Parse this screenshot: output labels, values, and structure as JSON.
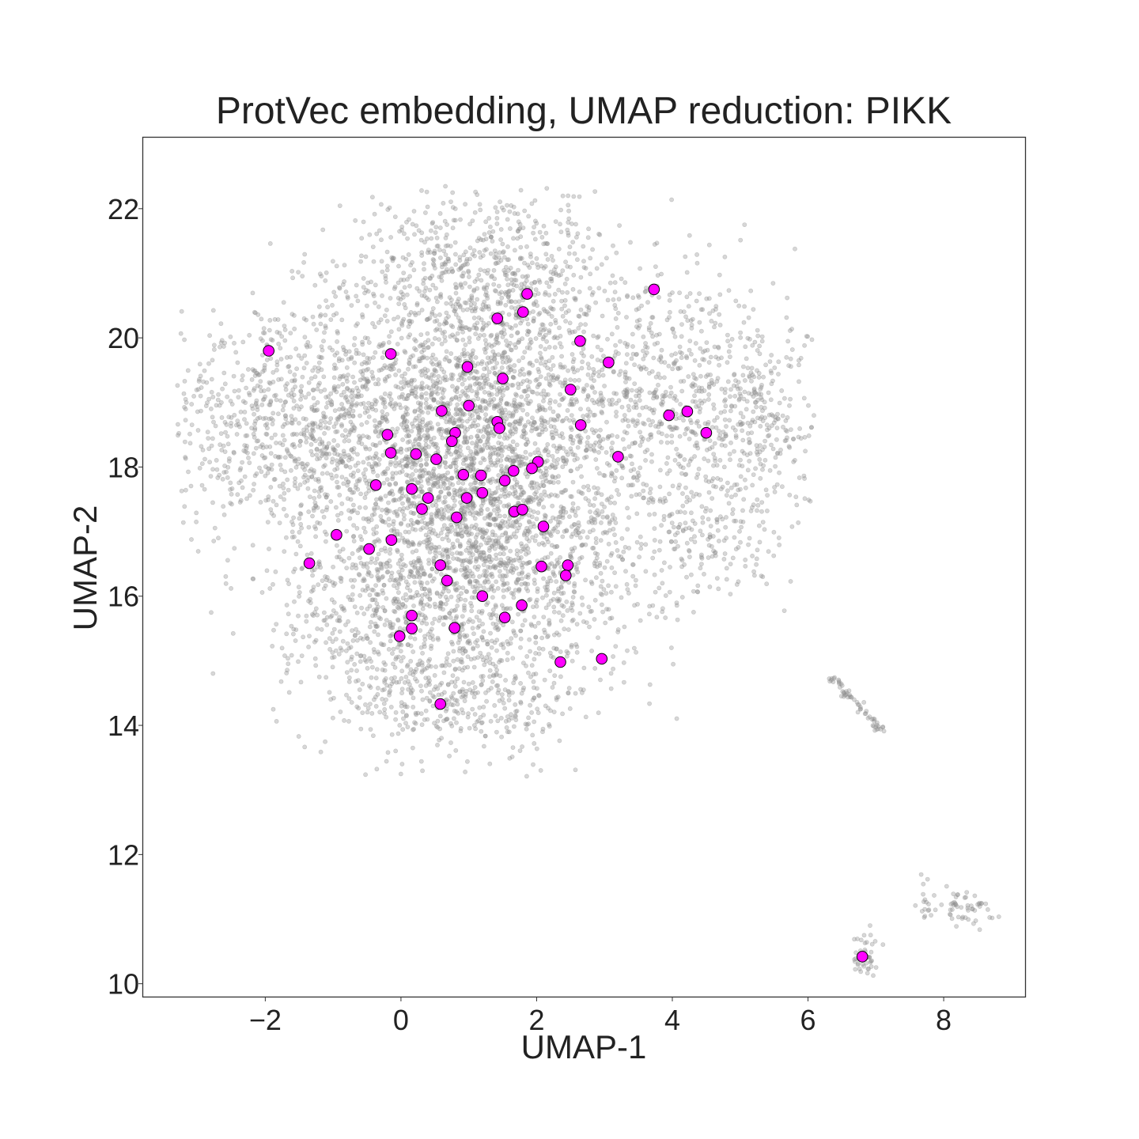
{
  "chart_data": {
    "type": "scatter",
    "title": "ProtVec embedding, UMAP reduction: PIKK",
    "xlabel": "UMAP-1",
    "ylabel": "UMAP-2",
    "xlim": [
      -3.8,
      9.2
    ],
    "ylim": [
      9.8,
      23.1
    ],
    "xticks": [
      -2,
      0,
      2,
      4,
      6,
      8
    ],
    "xtick_labels": [
      "−2",
      "0",
      "2",
      "4",
      "6",
      "8"
    ],
    "yticks": [
      10,
      12,
      14,
      16,
      18,
      20,
      22
    ],
    "ytick_labels": [
      "10",
      "12",
      "14",
      "16",
      "18",
      "20",
      "22"
    ],
    "grid": false,
    "background_colors": {
      "point": "#8c8c8c",
      "opacity": 0.35
    },
    "highlight_colors": {
      "fill": "#ff00ff",
      "edge": "#000000"
    },
    "background_series": {
      "description_clusters": [
        {
          "cx": 0.9,
          "cy": 18.7,
          "sx": 1.15,
          "sy": 1.4,
          "n": 2600
        },
        {
          "cx": 1.2,
          "cy": 16.5,
          "sx": 1.1,
          "sy": 1.15,
          "n": 1500
        },
        {
          "cx": -1.8,
          "cy": 18.7,
          "sx": 0.9,
          "sy": 0.9,
          "n": 700
        },
        {
          "cx": 3.8,
          "cy": 19.2,
          "sx": 1.0,
          "sy": 1.0,
          "n": 650
        },
        {
          "cx": 5.2,
          "cy": 18.8,
          "sx": 0.55,
          "sy": 0.75,
          "n": 250
        },
        {
          "cx": 4.3,
          "cy": 16.9,
          "sx": 0.7,
          "sy": 0.6,
          "n": 220
        },
        {
          "cx": 0.8,
          "cy": 14.4,
          "sx": 0.9,
          "sy": 0.45,
          "n": 300
        },
        {
          "cx": 1.4,
          "cy": 21.2,
          "sx": 0.9,
          "sy": 0.55,
          "n": 350
        },
        {
          "cx": -0.5,
          "cy": 15.6,
          "sx": 0.7,
          "sy": 0.6,
          "n": 250
        }
      ],
      "islands": [
        {
          "x0": 6.3,
          "y0": 14.8,
          "x1": 7.1,
          "y1": 13.9,
          "n": 60
        },
        {
          "cx": 6.85,
          "cy": 10.5,
          "sx": 0.09,
          "sy": 0.18,
          "n": 45
        },
        {
          "cx": 8.3,
          "cy": 11.2,
          "sx": 0.22,
          "sy": 0.18,
          "n": 55
        },
        {
          "cx": 7.75,
          "cy": 11.2,
          "sx": 0.06,
          "sy": 0.22,
          "n": 14
        }
      ]
    },
    "series": [
      {
        "x": [
          -1.95,
          -0.15,
          1.42,
          1.8,
          1.86,
          2.64,
          3.06,
          3.73,
          0.98,
          1.5,
          2.5,
          1.0,
          0.6,
          2.65,
          3.95,
          4.22,
          4.5,
          -0.2,
          1.42,
          1.45,
          0.8,
          0.75,
          -0.15,
          0.22,
          0.52,
          3.2,
          2.02,
          1.66,
          1.93,
          0.92,
          1.18,
          1.53,
          -0.37,
          0.16,
          1.2,
          0.4,
          0.97,
          0.31,
          1.67,
          1.79,
          0.82,
          2.1,
          -0.95,
          -0.14,
          -0.47,
          -1.35,
          0.58,
          2.07,
          2.46,
          2.43,
          0.68,
          1.2,
          1.78,
          0.16,
          1.53,
          0.16,
          0.79,
          -0.02,
          2.35,
          2.96,
          0.58,
          6.8
        ],
        "y": [
          19.8,
          19.75,
          20.3,
          20.4,
          20.68,
          19.95,
          19.62,
          20.75,
          19.55,
          19.37,
          19.2,
          18.95,
          18.87,
          18.65,
          18.8,
          18.86,
          18.53,
          18.5,
          18.7,
          18.6,
          18.53,
          18.4,
          18.22,
          18.2,
          18.12,
          18.16,
          18.08,
          17.94,
          17.98,
          17.88,
          17.87,
          17.79,
          17.72,
          17.66,
          17.6,
          17.52,
          17.52,
          17.35,
          17.31,
          17.34,
          17.22,
          17.08,
          16.95,
          16.87,
          16.73,
          16.51,
          16.48,
          16.46,
          16.48,
          16.32,
          16.24,
          16.0,
          15.86,
          15.7,
          15.67,
          15.5,
          15.51,
          15.38,
          14.98,
          15.03,
          14.33,
          10.42
        ]
      }
    ]
  }
}
